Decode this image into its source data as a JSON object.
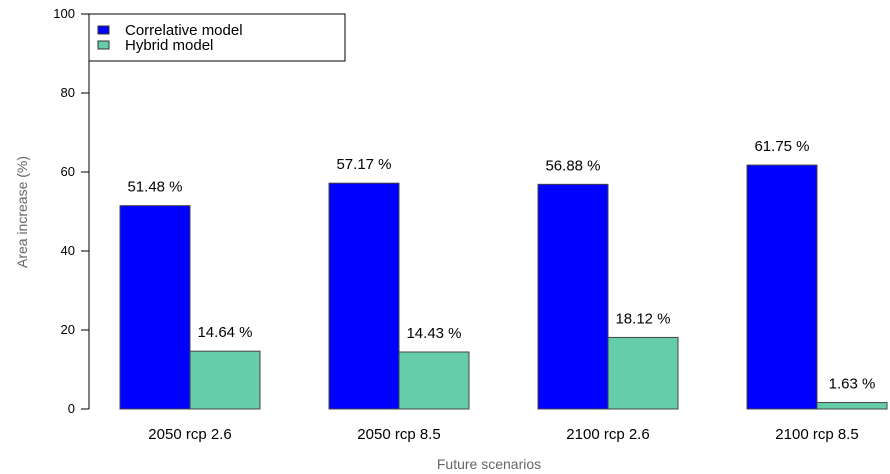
{
  "chart_data": {
    "type": "bar",
    "xlabel": "Future scenarios",
    "ylabel": "Area increase (%)",
    "ylim": [
      0,
      100
    ],
    "yticks": [
      0,
      20,
      40,
      60,
      80,
      100
    ],
    "grid": false,
    "legend_position": "top-left",
    "categories": [
      "2050 rcp 2.6",
      "2050 rcp 8.5",
      "2100 rcp 2.6",
      "2100 rcp 8.5"
    ],
    "series": [
      {
        "name": "Correlative model",
        "color": "#0000ff",
        "values": [
          51.48,
          57.17,
          56.88,
          61.75
        ],
        "labels": [
          "51.48 %",
          "57.17 %",
          "56.88 %",
          "61.75 %"
        ]
      },
      {
        "name": "Hybrid model",
        "color": "#66cdaa",
        "values": [
          14.64,
          14.43,
          18.12,
          1.63
        ],
        "labels": [
          "14.64 %",
          "14.43 %",
          "18.12 %",
          "1.63 %"
        ]
      }
    ]
  }
}
